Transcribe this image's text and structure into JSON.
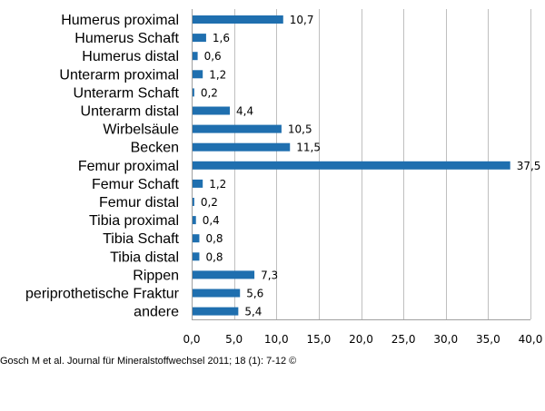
{
  "chart_data": {
    "type": "bar",
    "orientation": "horizontal",
    "categories": [
      "Humerus proximal",
      "Humerus Schaft",
      "Humerus distal",
      "Unterarm proximal",
      "Unterarm Schaft",
      "Unterarm distal",
      "Wirbelsäule",
      "Becken",
      "Femur proximal",
      "Femur Schaft",
      "Femur distal",
      "Tibia proximal",
      "Tibia Schaft",
      "Tibia distal",
      "Rippen",
      "periprothetische Fraktur",
      "andere"
    ],
    "values": [
      10.7,
      1.6,
      0.6,
      1.2,
      0.2,
      4.4,
      10.5,
      11.5,
      37.5,
      1.2,
      0.2,
      0.4,
      0.8,
      0.8,
      7.3,
      5.6,
      5.4
    ],
    "value_labels": [
      "10,7",
      "1,6",
      "0,6",
      "1,2",
      "0,2",
      "4,4",
      "10,5",
      "11,5",
      "37,5",
      "1,2",
      "0,2",
      "0,4",
      "0,8",
      "0,8",
      "7,3",
      "5,6",
      "5,4"
    ],
    "xlim": [
      0,
      40
    ],
    "ticks": [
      0,
      5,
      10,
      15,
      20,
      25,
      30,
      35,
      40
    ],
    "tick_labels": [
      "0,0",
      "5,0",
      "10,0",
      "15,0",
      "20,0",
      "25,0",
      "30,0",
      "35,0",
      "40,0"
    ],
    "title": "",
    "xlabel": "",
    "ylabel": "",
    "grid": "vertical",
    "legend": "none",
    "bar_color": "#1F6FAF",
    "grid_color": "#BFBFBF"
  },
  "source_note": "Gosch M et al. Journal für Mineralstoffwechsel 2011; 18 (1): 7-12 ©"
}
